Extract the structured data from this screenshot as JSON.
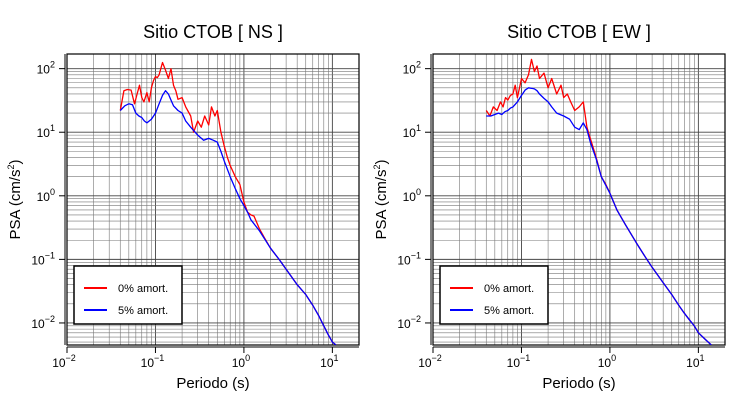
{
  "chart_data": [
    {
      "type": "line",
      "title": "Sitio CTOB [ NS ]",
      "xlabel": "Periodo (s)",
      "ylabel": "PSA (cm/s²)",
      "ylabel_main": "PSA (cm/s",
      "ylabel_sup": "2",
      "ylabel_end": ")",
      "xscale": "log",
      "yscale": "log",
      "xlim": [
        0.01,
        20
      ],
      "ylim": [
        0.0045,
        170
      ],
      "xticks": [
        0.01,
        0.1,
        1,
        10
      ],
      "yticks": [
        0.01,
        0.1,
        1,
        10,
        100
      ],
      "xtick_labels": [
        {
          "base": "10",
          "exp": "−2"
        },
        {
          "base": "10",
          "exp": "−1"
        },
        {
          "base": "10",
          "exp": "0"
        },
        {
          "base": "10",
          "exp": "1"
        }
      ],
      "ytick_labels": [
        {
          "base": "10",
          "exp": "−2"
        },
        {
          "base": "10",
          "exp": "−1"
        },
        {
          "base": "10",
          "exp": "0"
        },
        {
          "base": "10",
          "exp": "1"
        },
        {
          "base": "10",
          "exp": "2"
        }
      ],
      "grid": true,
      "legend_position": "bottom-left",
      "series": [
        {
          "name": "0% amort.",
          "color": "#ff0000",
          "x": [
            0.04,
            0.044,
            0.048,
            0.053,
            0.058,
            0.062,
            0.066,
            0.07,
            0.074,
            0.08,
            0.085,
            0.09,
            0.095,
            0.1,
            0.105,
            0.11,
            0.12,
            0.13,
            0.14,
            0.15,
            0.16,
            0.17,
            0.18,
            0.2,
            0.22,
            0.25,
            0.27,
            0.3,
            0.33,
            0.36,
            0.4,
            0.43,
            0.47,
            0.5,
            0.55,
            0.6,
            0.65,
            0.7,
            0.8,
            0.9,
            1.0,
            1.1,
            1.2,
            1.3,
            1.5,
            1.7,
            2.0,
            2.5,
            3.0,
            3.5,
            4.0,
            5.0,
            6.0,
            7.0,
            8.0,
            9.0,
            10.0,
            11.0
          ],
          "y": [
            22,
            45,
            47,
            46,
            28,
            40,
            55,
            35,
            30,
            42,
            30,
            50,
            65,
            75,
            72,
            80,
            125,
            95,
            70,
            100,
            55,
            45,
            33,
            35,
            25,
            18,
            10,
            15,
            12,
            18,
            13,
            25,
            18,
            22,
            10,
            6,
            4,
            3,
            2,
            1.5,
            0.8,
            0.55,
            0.5,
            0.48,
            0.3,
            0.22,
            0.15,
            0.1,
            0.07,
            0.052,
            0.04,
            0.028,
            0.019,
            0.013,
            0.009,
            0.0065,
            0.005,
            0.0045
          ]
        },
        {
          "name": "5% amort.",
          "color": "#0000ff",
          "x": [
            0.04,
            0.045,
            0.05,
            0.055,
            0.06,
            0.065,
            0.07,
            0.075,
            0.08,
            0.09,
            0.1,
            0.11,
            0.12,
            0.13,
            0.14,
            0.15,
            0.16,
            0.18,
            0.2,
            0.22,
            0.25,
            0.3,
            0.35,
            0.4,
            0.45,
            0.5,
            0.55,
            0.6,
            0.7,
            0.8,
            0.9,
            1.0,
            1.1,
            1.2,
            1.5,
            2.0,
            2.5,
            3.0,
            4.0,
            5.0,
            6.0,
            7.0,
            8.0,
            9.0,
            10.0,
            11.0
          ],
          "y": [
            22,
            26,
            28,
            27,
            20,
            18,
            17,
            15,
            14,
            16,
            20,
            28,
            38,
            45,
            40,
            32,
            26,
            22,
            20,
            15,
            12,
            9,
            7.5,
            8,
            7.5,
            7,
            5,
            3.5,
            2.0,
            1.3,
            0.9,
            0.7,
            0.55,
            0.42,
            0.28,
            0.15,
            0.1,
            0.07,
            0.04,
            0.028,
            0.019,
            0.013,
            0.009,
            0.0065,
            0.005,
            0.0045
          ]
        }
      ]
    },
    {
      "type": "line",
      "title": "Sitio CTOB [ EW ]",
      "xlabel": "Periodo (s)",
      "ylabel": "PSA (cm/s²)",
      "ylabel_main": "PSA (cm/s",
      "ylabel_sup": "2",
      "ylabel_end": ")",
      "xscale": "log",
      "yscale": "log",
      "xlim": [
        0.01,
        20
      ],
      "ylim": [
        0.0045,
        170
      ],
      "xticks": [
        0.01,
        0.1,
        1,
        10
      ],
      "yticks": [
        0.01,
        0.1,
        1,
        10,
        100
      ],
      "xtick_labels": [
        {
          "base": "10",
          "exp": "−2"
        },
        {
          "base": "10",
          "exp": "−1"
        },
        {
          "base": "10",
          "exp": "0"
        },
        {
          "base": "10",
          "exp": "1"
        }
      ],
      "ytick_labels": [
        {
          "base": "10",
          "exp": "−2"
        },
        {
          "base": "10",
          "exp": "−1"
        },
        {
          "base": "10",
          "exp": "0"
        },
        {
          "base": "10",
          "exp": "1"
        },
        {
          "base": "10",
          "exp": "2"
        }
      ],
      "grid": true,
      "legend_position": "bottom-left",
      "series": [
        {
          "name": "0% amort.",
          "color": "#ff0000",
          "x": [
            0.04,
            0.044,
            0.048,
            0.053,
            0.058,
            0.062,
            0.066,
            0.07,
            0.075,
            0.08,
            0.085,
            0.09,
            0.1,
            0.11,
            0.12,
            0.13,
            0.14,
            0.15,
            0.16,
            0.18,
            0.2,
            0.22,
            0.25,
            0.28,
            0.3,
            0.33,
            0.36,
            0.4,
            0.45,
            0.5,
            0.55,
            0.6,
            0.7,
            0.8,
            0.9,
            1.0,
            1.2,
            1.5,
            2.0,
            2.5,
            3.0,
            4.0,
            5.0,
            6.0,
            7.0,
            8.0,
            9.0,
            10.0,
            12.0,
            14.0
          ],
          "y": [
            22,
            18,
            25,
            22,
            30,
            25,
            35,
            32,
            38,
            40,
            55,
            35,
            70,
            60,
            80,
            140,
            90,
            110,
            70,
            85,
            50,
            70,
            40,
            55,
            35,
            40,
            30,
            22,
            25,
            30,
            12,
            8,
            4,
            2.0,
            1.5,
            1.1,
            0.6,
            0.35,
            0.18,
            0.11,
            0.075,
            0.043,
            0.028,
            0.019,
            0.014,
            0.011,
            0.009,
            0.007,
            0.0055,
            0.0045
          ]
        },
        {
          "name": "5% amort.",
          "color": "#0000ff",
          "x": [
            0.04,
            0.045,
            0.05,
            0.055,
            0.06,
            0.065,
            0.07,
            0.075,
            0.08,
            0.09,
            0.1,
            0.11,
            0.12,
            0.13,
            0.14,
            0.15,
            0.16,
            0.18,
            0.2,
            0.22,
            0.25,
            0.3,
            0.35,
            0.4,
            0.45,
            0.5,
            0.55,
            0.6,
            0.7,
            0.8,
            1.0,
            1.2,
            1.5,
            2.0,
            2.5,
            3.0,
            4.0,
            5.0,
            6.0,
            7.0,
            8.0,
            9.0,
            10.0,
            12.0,
            14.0
          ],
          "y": [
            18,
            18,
            19,
            20,
            19,
            21,
            22,
            24,
            25,
            30,
            38,
            46,
            50,
            49,
            48,
            45,
            40,
            34,
            30,
            25,
            20,
            18,
            16,
            12,
            11,
            14,
            11,
            7,
            3.8,
            2.0,
            1.1,
            0.6,
            0.35,
            0.18,
            0.11,
            0.075,
            0.043,
            0.028,
            0.019,
            0.014,
            0.011,
            0.009,
            0.007,
            0.0055,
            0.0045
          ]
        }
      ]
    }
  ]
}
